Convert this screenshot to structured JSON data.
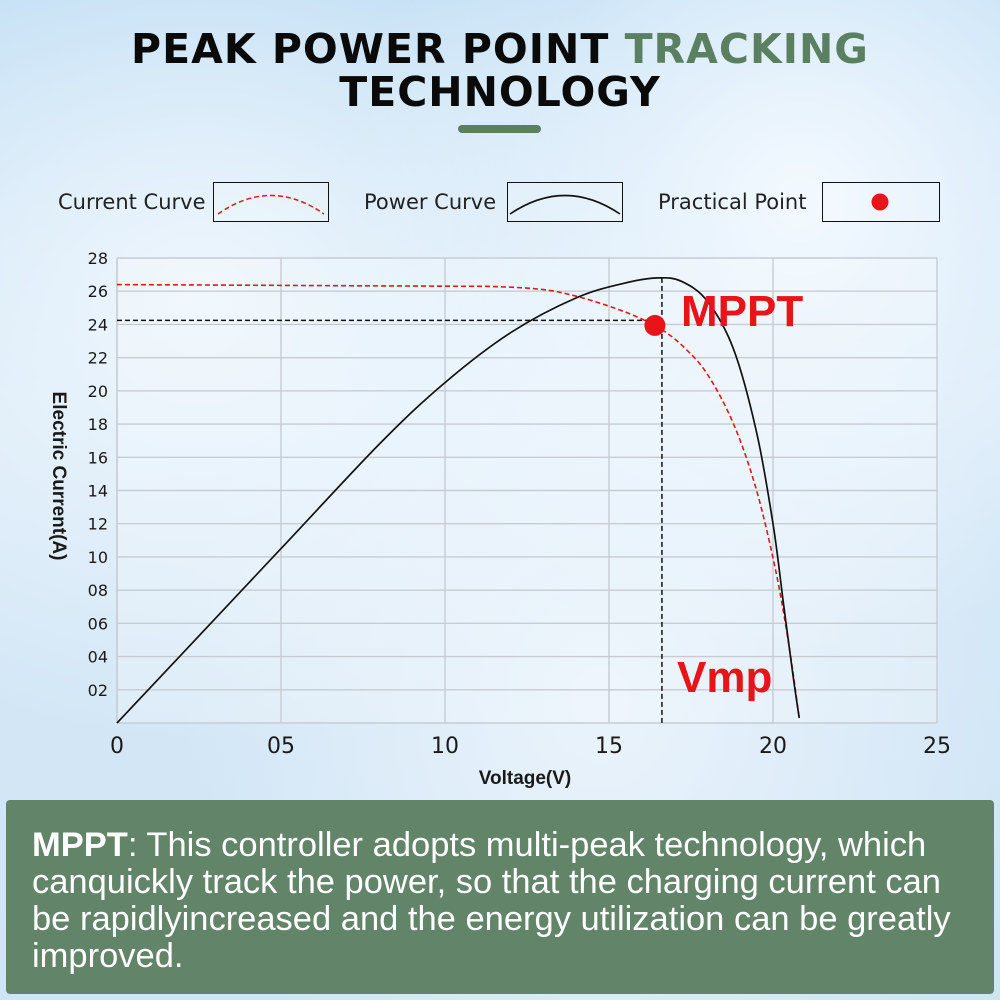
{
  "header": {
    "title_part1": "PEAK POWER POINT",
    "title_accent": "TRACKING",
    "title_line2": "TECHNOLOGY"
  },
  "legend": {
    "current_label": "Current Curve",
    "power_label": "Power Curve",
    "point_label": "Practical Point"
  },
  "colors": {
    "accent_green": "#5b8061",
    "panel_green": "#628468",
    "curve_red": "#e8141a",
    "curve_black": "#111111"
  },
  "chart_data": {
    "type": "line",
    "xlabel": "Voltage(V)",
    "ylabel": "Electric Current(A)",
    "xlim": [
      0,
      25
    ],
    "ylim": [
      0,
      28
    ],
    "x_ticks": [
      "0",
      "05",
      "10",
      "15",
      "20",
      "25"
    ],
    "y_ticks": [
      "02",
      "04",
      "06",
      "08",
      "10",
      "12",
      "14",
      "16",
      "18",
      "20",
      "22",
      "24",
      "26",
      "28"
    ],
    "grid": true,
    "series": [
      {
        "name": "Current Curve",
        "style": "dashed-red",
        "x": [
          0,
          5,
          10,
          11.5,
          13,
          14,
          15,
          15.8,
          16.6,
          17.3,
          18,
          18.8,
          19.5,
          20.1,
          20.5,
          20.8
        ],
        "y": [
          26.4,
          26.35,
          26.3,
          26.28,
          26.1,
          25.7,
          25.1,
          24.5,
          23.7,
          22.6,
          21,
          18,
          14,
          9,
          4.5,
          0.3
        ]
      },
      {
        "name": "Power Curve",
        "style": "solid-black",
        "x": [
          0,
          2,
          5,
          8,
          10,
          12,
          14,
          15.5,
          16.5,
          17.2,
          18,
          18.8,
          19.5,
          20,
          20.3,
          20.6,
          20.8
        ],
        "y": [
          0,
          4.2,
          10.5,
          16.8,
          20.5,
          23.5,
          25.6,
          26.5,
          26.8,
          26.6,
          25.4,
          22.5,
          17.5,
          12,
          7.5,
          3,
          0.3
        ]
      }
    ],
    "annotations": {
      "mppt_label": "MPPT",
      "vmp_label": "Vmp",
      "point": {
        "x": 16.4,
        "y": 24.0,
        "label": "Practical Point"
      }
    }
  },
  "description": {
    "bold_lead": "MPPT",
    "body": ": This controller adopts multi-peak technology, which canquickly track the power, so that the charging current can be rapidlyincreased and the energy utilization can be greatly improved."
  }
}
